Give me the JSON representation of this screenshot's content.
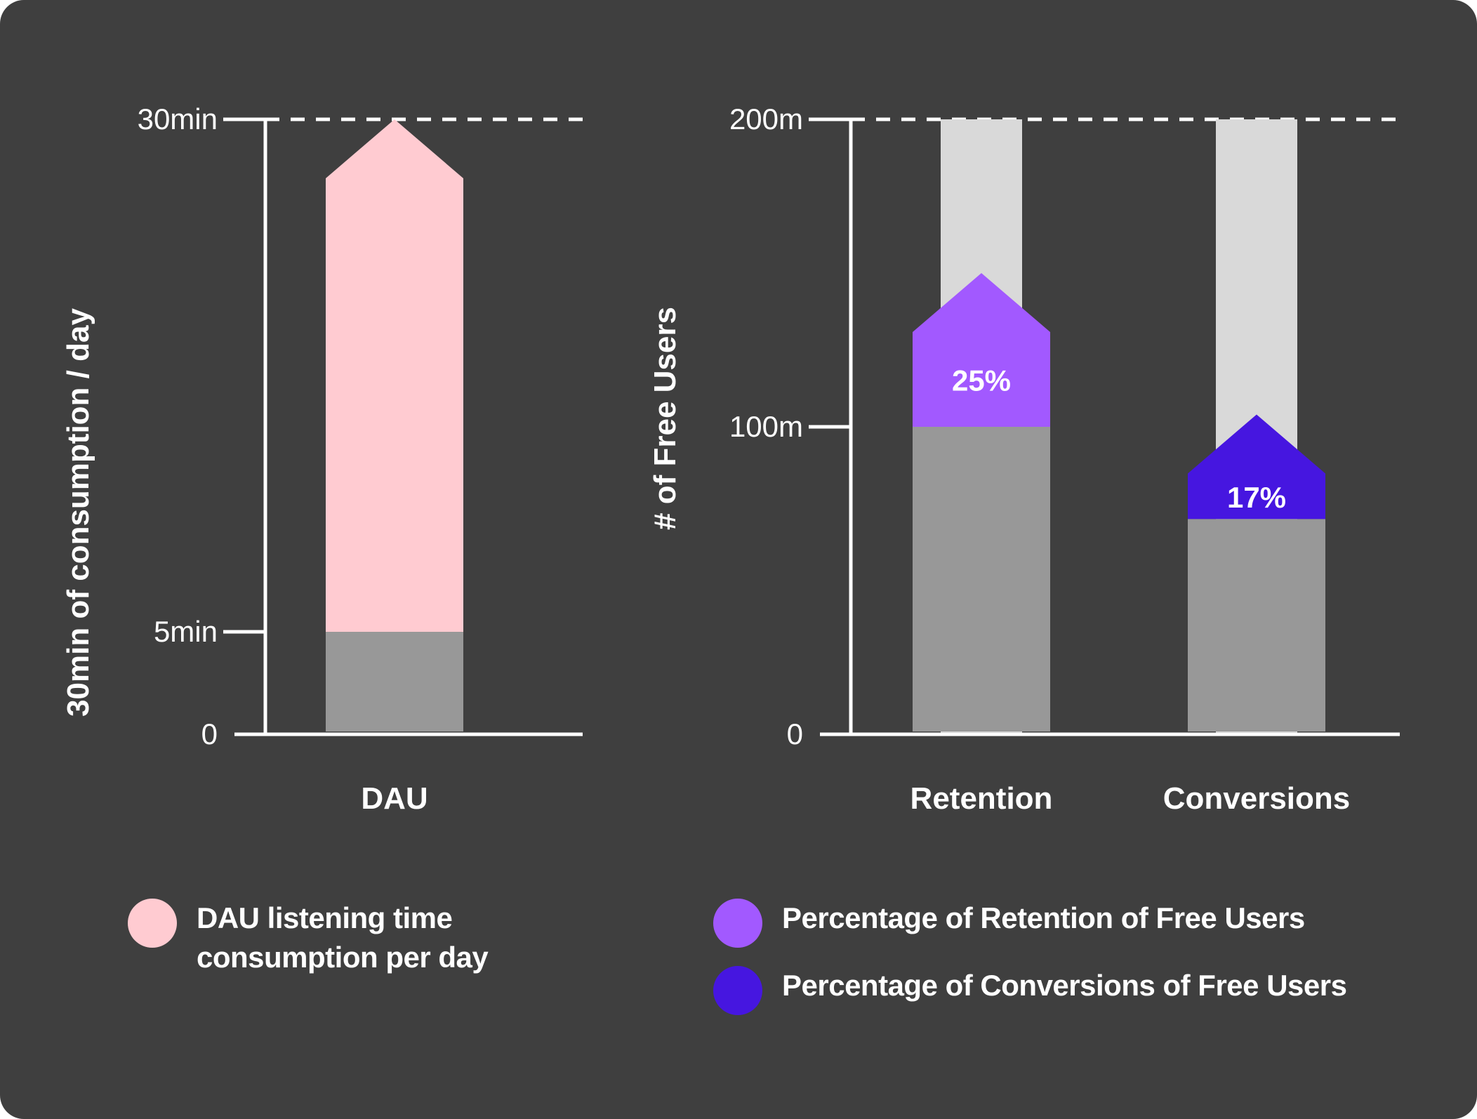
{
  "colors": {
    "background": "#3f3f3f",
    "axis": "#ffffff",
    "base_bar": "#989898",
    "capacity_bar": "#d9d9d9",
    "dau_fill": "#ffcbd1",
    "retention_fill": "#a259ff",
    "conversions_fill": "#4616e0"
  },
  "chart_data": [
    {
      "type": "bar",
      "ylabel": "30min of consumption / day",
      "ylim": [
        0,
        30
      ],
      "yticks": [
        {
          "value": 0,
          "label": "0"
        },
        {
          "value": 5,
          "label": "5min"
        },
        {
          "value": 30,
          "label": "30min"
        }
      ],
      "reference_line": 30,
      "categories": [
        "DAU"
      ],
      "series": [
        {
          "values": [
            5
          ],
          "color": "#989898"
        },
        {
          "values": [
            30
          ],
          "color": "#ffcbd1"
        }
      ]
    },
    {
      "type": "bar",
      "ylabel": "# of Free Users",
      "ylim": [
        0,
        200
      ],
      "yticks": [
        {
          "value": 0,
          "label": "0"
        },
        {
          "value": 100,
          "label": "100m"
        },
        {
          "value": 200,
          "label": "200m"
        }
      ],
      "reference_line": 200,
      "categories": [
        "Retention",
        "Conversions"
      ],
      "capacity": [
        200,
        200
      ],
      "base": [
        100,
        70
      ],
      "arrow_tip": [
        150,
        104
      ],
      "increase_labels": [
        "25%",
        "17%"
      ],
      "increase_colors": [
        "#a259ff",
        "#4616e0"
      ]
    }
  ],
  "legend": [
    {
      "label": "DAU  listening time\nconsumption per day",
      "color": "#ffcbd1"
    },
    {
      "label": "Percentage of Retention of Free Users",
      "color": "#a259ff"
    },
    {
      "label": "Percentage of Conversions of Free Users",
      "color": "#4616e0"
    }
  ]
}
